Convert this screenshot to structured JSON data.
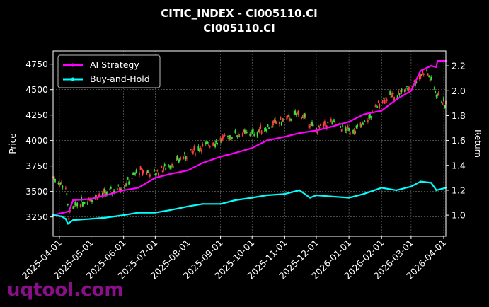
{
  "chart_data": {
    "type": "line",
    "title": "CITIC_INDEX - CI005110.CI",
    "subtitle": "CI005110.CI",
    "ylabel_left": "Price",
    "ylabel_right": "Return",
    "left_yticks": [
      3250,
      3500,
      3750,
      4000,
      4250,
      4500,
      4750
    ],
    "right_yticks": [
      1.0,
      1.2,
      1.4,
      1.6,
      1.8,
      2.0,
      2.2
    ],
    "xticks": [
      "2025-04-01",
      "2025-05-01",
      "2025-06-01",
      "2025-07-01",
      "2025-08-01",
      "2025-09-01",
      "2025-10-01",
      "2025-11-01",
      "2025-12-01",
      "2026-01-01",
      "2026-02-01",
      "2026-03-01",
      "2026-04-01"
    ],
    "xlim": [
      "2025-03-26",
      "2026-04-03"
    ],
    "ylim_left": [
      3060,
      4880
    ],
    "ylim_right": [
      0.83,
      2.32
    ],
    "grid": true,
    "legend_position": "top-left",
    "legend": [
      {
        "name": "AI Strategy",
        "color": "#ff00ff"
      },
      {
        "name": "Buy-and-Hold",
        "color": "#00ffff"
      }
    ],
    "candle_colors": {
      "up": "#39e639",
      "down": "#ff4040"
    },
    "price_path": [
      [
        "2025-03-26",
        3640
      ],
      [
        "2025-04-07",
        3540
      ],
      [
        "2025-04-10",
        3260
      ],
      [
        "2025-04-18",
        3380
      ],
      [
        "2025-05-01",
        3430
      ],
      [
        "2025-05-20",
        3500
      ],
      [
        "2025-06-01",
        3560
      ],
      [
        "2025-06-15",
        3700
      ],
      [
        "2025-07-01",
        3680
      ],
      [
        "2025-07-15",
        3760
      ],
      [
        "2025-08-01",
        3860
      ],
      [
        "2025-08-15",
        3940
      ],
      [
        "2025-09-01",
        4000
      ],
      [
        "2025-09-15",
        4060
      ],
      [
        "2025-10-01",
        4070
      ],
      [
        "2025-10-15",
        4130
      ],
      [
        "2025-11-01",
        4200
      ],
      [
        "2025-11-15",
        4270
      ],
      [
        "2025-12-01",
        4100
      ],
      [
        "2025-12-15",
        4180
      ],
      [
        "2026-01-01",
        4090
      ],
      [
        "2026-01-15",
        4150
      ],
      [
        "2026-02-01",
        4400
      ],
      [
        "2026-02-15",
        4450
      ],
      [
        "2026-03-01",
        4530
      ],
      [
        "2026-03-15",
        4700
      ],
      [
        "2026-03-25",
        4460
      ],
      [
        "2026-04-03",
        4350
      ]
    ],
    "series": [
      {
        "name": "AI Strategy",
        "color": "#ff00ff",
        "points": [
          [
            "2025-03-26",
            1.0
          ],
          [
            "2025-04-10",
            1.03
          ],
          [
            "2025-04-14",
            1.12
          ],
          [
            "2025-05-01",
            1.13
          ],
          [
            "2025-05-15",
            1.16
          ],
          [
            "2025-06-01",
            1.2
          ],
          [
            "2025-06-15",
            1.22
          ],
          [
            "2025-07-01",
            1.3
          ],
          [
            "2025-07-15",
            1.33
          ],
          [
            "2025-08-01",
            1.36
          ],
          [
            "2025-08-15",
            1.42
          ],
          [
            "2025-09-01",
            1.47
          ],
          [
            "2025-09-15",
            1.5
          ],
          [
            "2025-10-01",
            1.54
          ],
          [
            "2025-10-15",
            1.6
          ],
          [
            "2025-11-01",
            1.63
          ],
          [
            "2025-11-15",
            1.66
          ],
          [
            "2025-12-01",
            1.68
          ],
          [
            "2025-12-15",
            1.71
          ],
          [
            "2026-01-01",
            1.75
          ],
          [
            "2026-01-15",
            1.81
          ],
          [
            "2026-02-01",
            1.84
          ],
          [
            "2026-02-15",
            1.93
          ],
          [
            "2026-03-01",
            2.0
          ],
          [
            "2026-03-10",
            2.16
          ],
          [
            "2026-03-20",
            2.2
          ],
          [
            "2026-03-25",
            2.19
          ],
          [
            "2026-03-26",
            2.24
          ],
          [
            "2026-04-03",
            2.24
          ]
        ]
      },
      {
        "name": "Buy-and-Hold",
        "color": "#00ffff",
        "points": [
          [
            "2025-03-26",
            1.0
          ],
          [
            "2025-04-03",
            0.99
          ],
          [
            "2025-04-07",
            0.97
          ],
          [
            "2025-04-09",
            0.93
          ],
          [
            "2025-04-14",
            0.96
          ],
          [
            "2025-05-01",
            0.97
          ],
          [
            "2025-05-15",
            0.98
          ],
          [
            "2025-06-01",
            1.0
          ],
          [
            "2025-06-15",
            1.02
          ],
          [
            "2025-07-01",
            1.02
          ],
          [
            "2025-07-15",
            1.04
          ],
          [
            "2025-08-01",
            1.07
          ],
          [
            "2025-08-15",
            1.09
          ],
          [
            "2025-09-01",
            1.09
          ],
          [
            "2025-09-15",
            1.12
          ],
          [
            "2025-10-01",
            1.14
          ],
          [
            "2025-10-15",
            1.16
          ],
          [
            "2025-11-01",
            1.17
          ],
          [
            "2025-11-15",
            1.2
          ],
          [
            "2025-11-25",
            1.14
          ],
          [
            "2025-12-01",
            1.16
          ],
          [
            "2025-12-15",
            1.15
          ],
          [
            "2026-01-01",
            1.14
          ],
          [
            "2026-01-15",
            1.17
          ],
          [
            "2026-02-01",
            1.22
          ],
          [
            "2026-02-15",
            1.2
          ],
          [
            "2026-03-01",
            1.23
          ],
          [
            "2026-03-10",
            1.27
          ],
          [
            "2026-03-20",
            1.26
          ],
          [
            "2026-03-25",
            1.2
          ],
          [
            "2026-04-03",
            1.22
          ]
        ]
      }
    ]
  },
  "watermark": "uqtool.com"
}
